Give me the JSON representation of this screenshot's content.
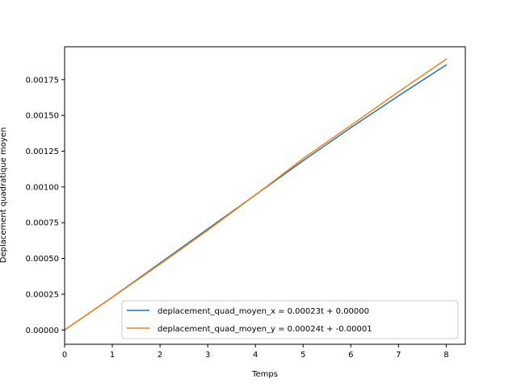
{
  "chart_data": {
    "type": "line",
    "title": "",
    "xlabel": "Temps",
    "ylabel": "Deplacement quadratique moyen",
    "xlim": [
      0,
      8.4
    ],
    "ylim": [
      -0.0001,
      0.00198
    ],
    "xticks": [
      0,
      1,
      2,
      3,
      4,
      5,
      6,
      7,
      8
    ],
    "xtick_labels": [
      "0",
      "1",
      "2",
      "3",
      "4",
      "5",
      "6",
      "7",
      "8"
    ],
    "yticks": [
      0,
      0.00025,
      0.0005,
      0.00075,
      0.001,
      0.00125,
      0.0015,
      0.00175
    ],
    "ytick_labels": [
      "0.00000",
      "0.00025",
      "0.00050",
      "0.00075",
      "0.00100",
      "0.00125",
      "0.00150",
      "0.00175"
    ],
    "grid": false,
    "legend_position": "lower-right",
    "x": [
      0,
      1,
      2,
      3,
      4,
      5,
      6,
      7,
      8
    ],
    "series": [
      {
        "name": "deplacement_quad_moyen_x = 0.00023t + 0.00000",
        "color": "#1f77b4",
        "values": [
          0.0,
          0.000229,
          0.000467,
          0.000706,
          0.000944,
          0.001183,
          0.001414,
          0.001637,
          0.001853
        ]
      },
      {
        "name": "deplacement_quad_moyen_y = 0.00024t + -0.00001",
        "color": "#ff7f0e",
        "values": [
          0.0,
          0.000228,
          0.00046,
          0.000697,
          0.000944,
          0.001198,
          0.00143,
          0.001665,
          0.001893
        ]
      }
    ]
  }
}
